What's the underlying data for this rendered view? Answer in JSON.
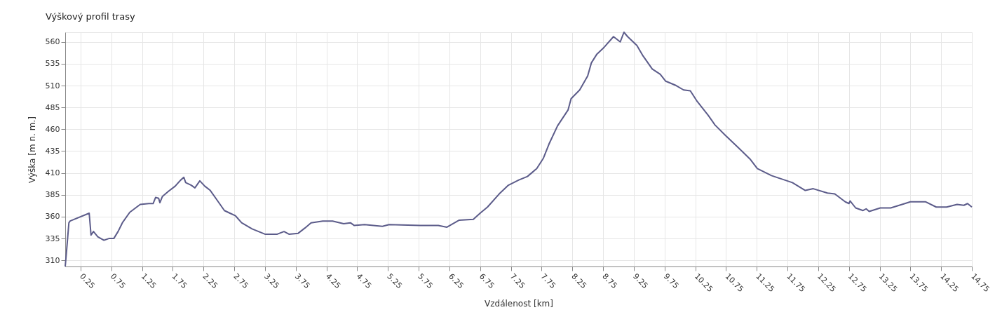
{
  "chart_data": {
    "type": "line",
    "title": "Výškový profil trasy",
    "xlabel": "Vzdálenost [km]",
    "ylabel": "Výška [m n. m.]",
    "x": [
      0,
      0.02,
      0.06,
      0.08,
      0.39,
      0.42,
      0.46,
      0.53,
      0.63,
      0.71,
      0.79,
      0.86,
      0.93,
      1.05,
      1.22,
      1.36,
      1.43,
      1.47,
      1.52,
      1.54,
      1.58,
      1.68,
      1.79,
      1.88,
      1.93,
      1.96,
      2.05,
      2.11,
      2.19,
      2.27,
      2.36,
      2.47,
      2.59,
      2.68,
      2.77,
      2.87,
      3.04,
      3.25,
      3.45,
      3.56,
      3.64,
      3.79,
      3.9,
      4.0,
      4.19,
      4.35,
      4.53,
      4.64,
      4.7,
      4.87,
      5.16,
      5.27,
      5.78,
      6.07,
      6.21,
      6.41,
      6.64,
      6.75,
      6.87,
      7.06,
      7.21,
      7.38,
      7.52,
      7.67,
      7.78,
      7.87,
      8.01,
      8.18,
      8.23,
      8.37,
      8.5,
      8.56,
      8.65,
      8.77,
      8.92,
      9.03,
      9.09,
      9.15,
      9.3,
      9.4,
      9.55,
      9.68,
      9.77,
      9.94,
      10.06,
      10.17,
      10.28,
      10.46,
      10.57,
      10.74,
      10.95,
      11.14,
      11.26,
      11.49,
      11.66,
      11.83,
      12.04,
      12.17,
      12.4,
      12.52,
      12.69,
      12.75,
      12.77,
      12.86,
      12.98,
      13.03,
      13.08,
      13.26,
      13.43,
      13.66,
      13.75,
      14.0,
      14.17,
      14.34,
      14.51,
      14.62,
      14.68,
      14.75
    ],
    "series": [
      {
        "color": "#5c5c8a",
        "values": [
          303,
          319,
          353,
          355,
          364,
          339,
          343,
          337,
          333,
          335,
          335,
          343,
          353,
          365,
          374,
          375,
          375,
          382,
          381,
          376,
          383,
          389,
          395,
          402,
          405,
          399,
          396,
          393,
          401,
          395,
          390,
          379,
          367,
          364,
          361,
          353,
          346,
          340,
          340,
          343,
          340,
          341,
          347,
          353,
          355,
          355,
          352,
          353,
          350,
          351,
          349,
          351,
          350,
          350,
          348,
          356,
          357,
          364,
          371,
          386,
          396,
          402,
          406,
          415,
          427,
          443,
          464,
          482,
          495,
          505,
          521,
          536,
          546,
          554,
          566,
          560,
          571,
          566,
          556,
          544,
          529,
          523,
          515,
          510,
          505,
          504,
          492,
          476,
          465,
          453,
          439,
          426,
          415,
          407,
          403,
          399,
          390,
          392,
          387,
          386,
          377,
          375,
          378,
          370,
          367,
          369,
          366,
          370,
          370,
          375,
          377,
          377,
          371,
          371,
          374,
          373,
          375,
          371
        ]
      }
    ],
    "xlim": [
      0,
      14.75
    ],
    "xticks": [
      0.25,
      0.75,
      1.25,
      1.75,
      2.25,
      2.75,
      3.25,
      3.75,
      4.25,
      4.75,
      5.25,
      5.75,
      6.25,
      6.75,
      7.25,
      7.75,
      8.25,
      8.75,
      9.25,
      9.75,
      10.25,
      10.75,
      11.25,
      11.75,
      12.25,
      12.75,
      13.25,
      13.75,
      14.25,
      14.75
    ],
    "ylim": [
      303,
      571
    ],
    "yticks": [
      310,
      335,
      360,
      385,
      410,
      435,
      460,
      485,
      510,
      535,
      560
    ],
    "grid": true,
    "marker": "none",
    "line_style": "solid"
  }
}
